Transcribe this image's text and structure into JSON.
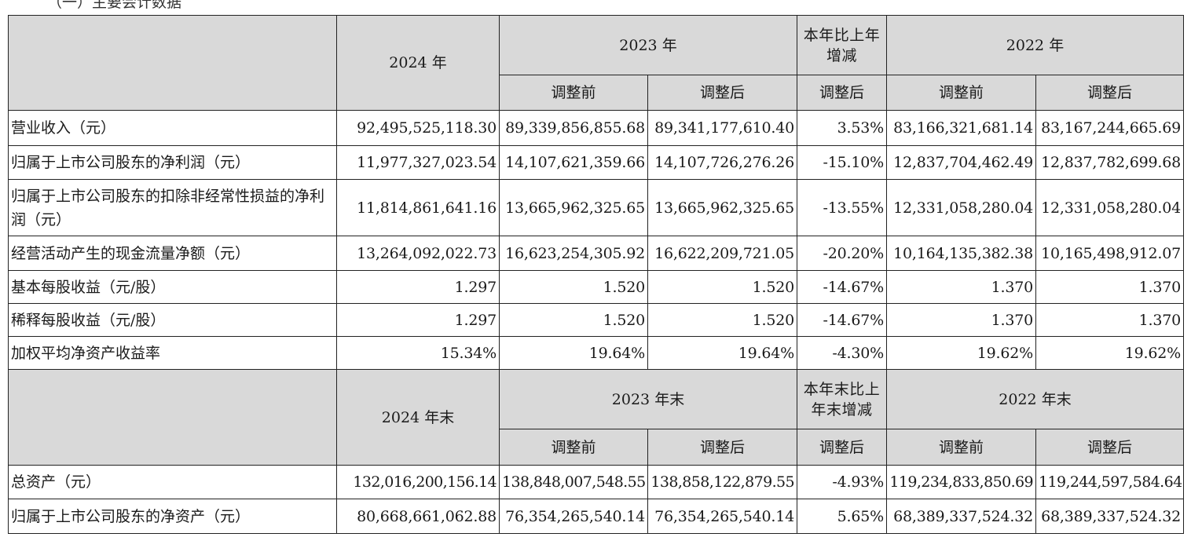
{
  "top_fragment": "（一）主要会计数据",
  "header1": {
    "col_2024": "2024 年",
    "col_2023": "2023 年",
    "col_change": "本年比上年增减",
    "col_2022": "2022 年",
    "before": "调整前",
    "after": "调整后",
    "change_after": "调整后",
    "before_2022": "调整前",
    "after_2022": "调整后"
  },
  "rows1": [
    {
      "label": "营业收入（元）",
      "v2024": "92,495,525,118.30",
      "v2023_before": "89,339,856,855.68",
      "v2023_after": "89,341,177,610.40",
      "change": "3.53%",
      "v2022_before": "83,166,321,681.14",
      "v2022_after": "83,167,244,665.69"
    },
    {
      "label": "归属于上市公司股东的净利润（元）",
      "v2024": "11,977,327,023.54",
      "v2023_before": "14,107,621,359.66",
      "v2023_after": "14,107,726,276.26",
      "change": "-15.10%",
      "v2022_before": "12,837,704,462.49",
      "v2022_after": "12,837,782,699.68"
    },
    {
      "label": "归属于上市公司股东的扣除非经常性损益的净利润（元）",
      "v2024": "11,814,861,641.16",
      "v2023_before": "13,665,962,325.65",
      "v2023_after": "13,665,962,325.65",
      "change": "-13.55%",
      "v2022_before": "12,331,058,280.04",
      "v2022_after": "12,331,058,280.04"
    },
    {
      "label": "经营活动产生的现金流量净额（元）",
      "v2024": "13,264,092,022.73",
      "v2023_before": "16,623,254,305.92",
      "v2023_after": "16,622,209,721.05",
      "change": "-20.20%",
      "v2022_before": "10,164,135,382.38",
      "v2022_after": "10,165,498,912.07"
    },
    {
      "label": "基本每股收益（元/股）",
      "v2024": "1.297",
      "v2023_before": "1.520",
      "v2023_after": "1.520",
      "change": "-14.67%",
      "v2022_before": "1.370",
      "v2022_after": "1.370"
    },
    {
      "label": "稀释每股收益（元/股）",
      "v2024": "1.297",
      "v2023_before": "1.520",
      "v2023_after": "1.520",
      "change": "-14.67%",
      "v2022_before": "1.370",
      "v2022_after": "1.370"
    },
    {
      "label": "加权平均净资产收益率",
      "v2024": "15.34%",
      "v2023_before": "19.64%",
      "v2023_after": "19.64%",
      "change": "-4.30%",
      "v2022_before": "19.62%",
      "v2022_after": "19.62%"
    }
  ],
  "header2": {
    "col_2024": "2024 年末",
    "col_2023": "2023 年末",
    "col_change": "本年末比上年末增减",
    "col_2022": "2022 年末",
    "before": "调整前",
    "after": "调整后",
    "change_after": "调整后",
    "before_2022": "调整前",
    "after_2022": "调整后"
  },
  "rows2": [
    {
      "label": "总资产（元）",
      "v2024": "132,016,200,156.14",
      "v2023_before": "138,848,007,548.55",
      "v2023_after": "138,858,122,879.55",
      "change": "-4.93%",
      "v2022_before": "119,234,833,850.69",
      "v2022_after": "119,244,597,584.64"
    },
    {
      "label": "归属于上市公司股东的净资产（元）",
      "v2024": "80,668,661,062.88",
      "v2023_before": "76,354,265,540.14",
      "v2023_after": "76,354,265,540.14",
      "change": "5.65%",
      "v2022_before": "68,389,337,524.32",
      "v2022_after": "68,389,337,524.32"
    }
  ]
}
